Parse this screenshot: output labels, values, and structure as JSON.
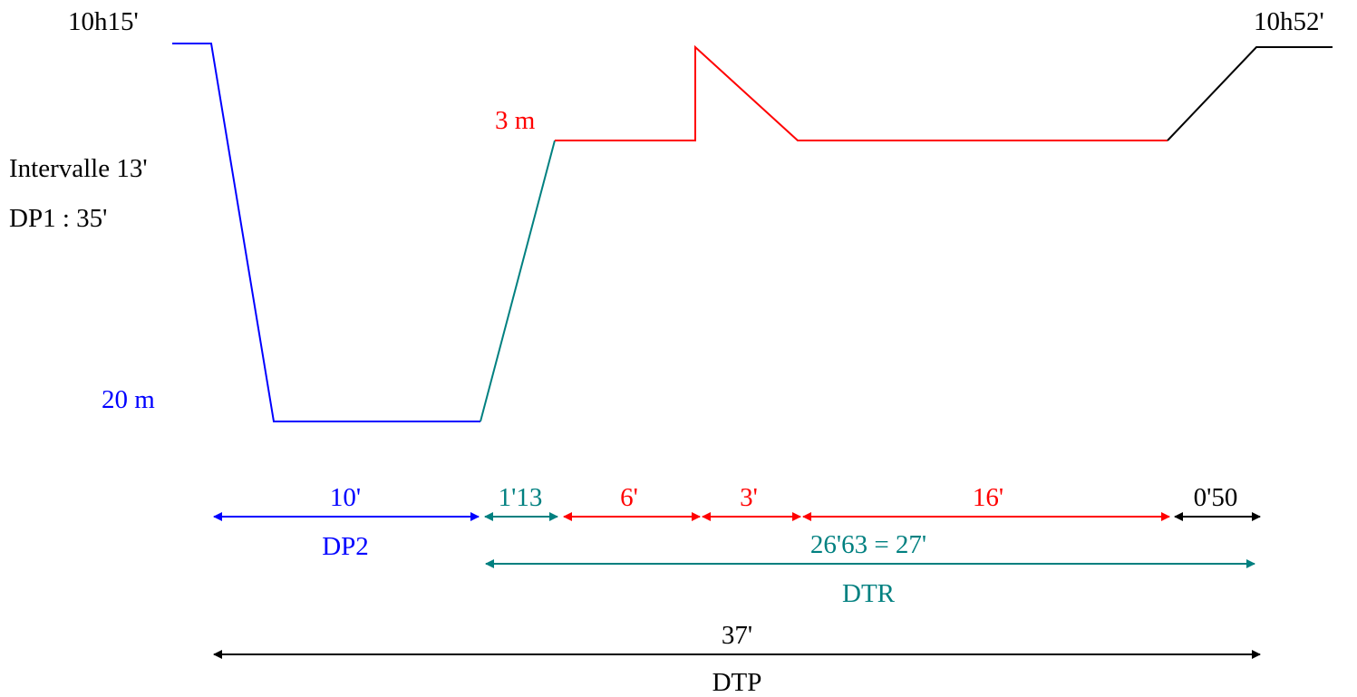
{
  "colors": {
    "blue": "#0000ff",
    "teal": "#008080",
    "red": "#ff0000",
    "black": "#000000"
  },
  "labels": {
    "start_time": "10h15'",
    "end_time": "10h52'",
    "interval": "Intervalle  13'",
    "dp1": "DP1 : 35'",
    "depth_max": "20 m",
    "depth_stop": "3 m"
  },
  "durations": {
    "bottom": "10'",
    "ascent": "1'13",
    "stop_part1": "6'",
    "stop_part2": "3'",
    "stop_part3": "16'",
    "final_ascent": "0'50",
    "dtr_value": "26'63 = 27'",
    "dtp_value": "37'"
  },
  "abbreviations": {
    "dp2": "DP2",
    "dtr": "DTR",
    "dtp": "DTP"
  }
}
